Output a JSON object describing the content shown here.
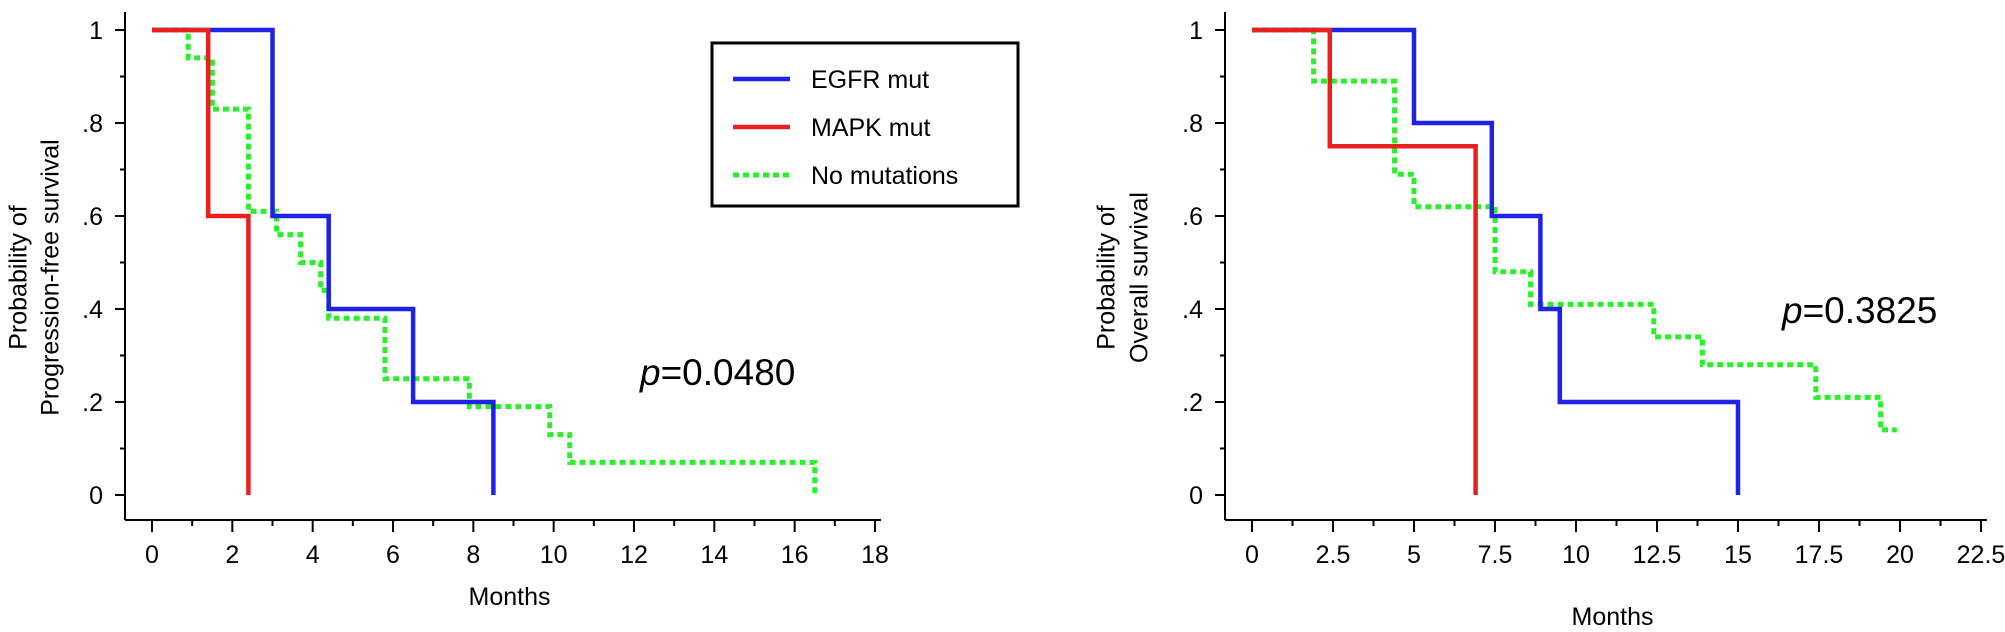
{
  "colors": {
    "EGFR mut": "#1f22e6",
    "MAPK mut": "#e8211f",
    "No mutations": "#2bef2b"
  },
  "legend": [
    "EGFR mut",
    "MAPK mut",
    "No mutations"
  ],
  "chart_data": [
    {
      "type": "line",
      "subtype": "kaplan-meier",
      "title": "",
      "xlabel": "Months",
      "ylabel_line1": "Probability of",
      "ylabel_line2": "Progression-free survival",
      "xlim": [
        0,
        18
      ],
      "ylim": [
        0,
        1
      ],
      "xticks": [
        0,
        2,
        4,
        6,
        8,
        10,
        12,
        14,
        16,
        18
      ],
      "xtick_labels": [
        "0",
        "2",
        "4",
        "6",
        "8",
        "10",
        "12",
        "14",
        "16",
        "18"
      ],
      "yticks": [
        0,
        0.2,
        0.4,
        0.6,
        0.8,
        1
      ],
      "ytick_labels": [
        "0",
        ".2",
        ".4",
        ".6",
        ".8",
        "1"
      ],
      "p_prefix": "p",
      "p_value": "=0.0480",
      "legend_position": "top-right",
      "series": [
        {
          "name": "EGFR mut",
          "style": "solid",
          "points": [
            [
              0,
              1
            ],
            [
              3,
              1
            ],
            [
              3,
              0.6
            ],
            [
              4.4,
              0.6
            ],
            [
              4.4,
              0.4
            ],
            [
              6.5,
              0.4
            ],
            [
              6.5,
              0.2
            ],
            [
              8.5,
              0.2
            ],
            [
              8.5,
              0
            ]
          ]
        },
        {
          "name": "MAPK mut",
          "style": "solid",
          "points": [
            [
              0,
              1
            ],
            [
              1.4,
              1
            ],
            [
              1.4,
              0.6
            ],
            [
              2.4,
              0.6
            ],
            [
              2.4,
              0
            ]
          ]
        },
        {
          "name": "No mutations",
          "style": "dotted",
          "points": [
            [
              0,
              1
            ],
            [
              0.9,
              1
            ],
            [
              0.9,
              0.94
            ],
            [
              1.5,
              0.94
            ],
            [
              1.5,
              0.83
            ],
            [
              2.4,
              0.83
            ],
            [
              2.4,
              0.61
            ],
            [
              3.1,
              0.61
            ],
            [
              3.1,
              0.56
            ],
            [
              3.7,
              0.56
            ],
            [
              3.7,
              0.5
            ],
            [
              4.2,
              0.5
            ],
            [
              4.2,
              0.44
            ],
            [
              4.4,
              0.44
            ],
            [
              4.4,
              0.38
            ],
            [
              5.8,
              0.38
            ],
            [
              5.8,
              0.25
            ],
            [
              7.9,
              0.25
            ],
            [
              7.9,
              0.19
            ],
            [
              9.9,
              0.19
            ],
            [
              9.9,
              0.13
            ],
            [
              10.4,
              0.13
            ],
            [
              10.4,
              0.07
            ],
            [
              16.5,
              0.07
            ],
            [
              16.5,
              0
            ]
          ]
        }
      ]
    },
    {
      "type": "line",
      "subtype": "kaplan-meier",
      "title": "",
      "xlabel": "Months",
      "ylabel_line1": "Probability of",
      "ylabel_line2": "Overall survival",
      "xlim": [
        0,
        22.5
      ],
      "ylim": [
        0,
        1
      ],
      "xticks": [
        0,
        2.5,
        5,
        7.5,
        10,
        12.5,
        15,
        17.5,
        20,
        22.5
      ],
      "xtick_labels": [
        "0",
        "2.5",
        "5",
        "7.5",
        "10",
        "12.5",
        "15",
        "17.5",
        "20",
        "22.5"
      ],
      "yticks": [
        0,
        0.2,
        0.4,
        0.6,
        0.8,
        1
      ],
      "ytick_labels": [
        "0",
        ".2",
        ".4",
        ".6",
        ".8",
        "1"
      ],
      "p_prefix": "p",
      "p_value": "=0.3825",
      "series": [
        {
          "name": "EGFR mut",
          "style": "solid",
          "points": [
            [
              0,
              1
            ],
            [
              5,
              1
            ],
            [
              5,
              0.8
            ],
            [
              7.4,
              0.8
            ],
            [
              7.4,
              0.6
            ],
            [
              8.9,
              0.6
            ],
            [
              8.9,
              0.4
            ],
            [
              9.5,
              0.4
            ],
            [
              9.5,
              0.2
            ],
            [
              15,
              0.2
            ],
            [
              15,
              0
            ]
          ]
        },
        {
          "name": "MAPK mut",
          "style": "solid",
          "points": [
            [
              0,
              1
            ],
            [
              2.4,
              1
            ],
            [
              2.4,
              0.75
            ],
            [
              6.9,
              0.75
            ],
            [
              6.9,
              0
            ]
          ]
        },
        {
          "name": "No mutations",
          "style": "dotted",
          "points": [
            [
              0,
              1
            ],
            [
              1.9,
              1
            ],
            [
              1.9,
              0.89
            ],
            [
              4.4,
              0.89
            ],
            [
              4.4,
              0.69
            ],
            [
              5,
              0.69
            ],
            [
              5,
              0.62
            ],
            [
              7.5,
              0.62
            ],
            [
              7.5,
              0.48
            ],
            [
              8.6,
              0.48
            ],
            [
              8.6,
              0.41
            ],
            [
              12.4,
              0.41
            ],
            [
              12.4,
              0.34
            ],
            [
              13.9,
              0.34
            ],
            [
              13.9,
              0.28
            ],
            [
              17.4,
              0.28
            ],
            [
              17.4,
              0.21
            ],
            [
              19.4,
              0.21
            ],
            [
              19.4,
              0.14
            ],
            [
              19.9,
              0.14
            ]
          ]
        }
      ]
    }
  ]
}
